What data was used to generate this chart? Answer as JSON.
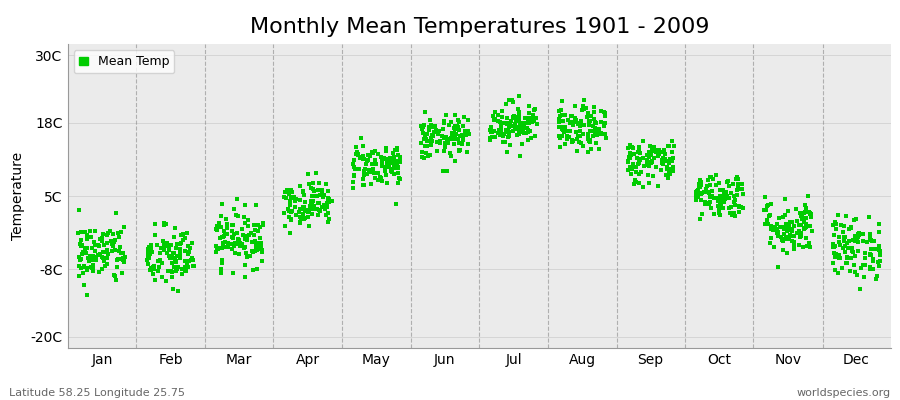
{
  "title": "Monthly Mean Temperatures 1901 - 2009",
  "ylabel": "Temperature",
  "yticks": [
    -20,
    -8,
    5,
    18,
    30
  ],
  "ytick_labels": [
    "-20C",
    "-8C",
    "5C",
    "18C",
    "30C"
  ],
  "ylim": [
    -22,
    32
  ],
  "xlim": [
    0.0,
    1.0
  ],
  "months": [
    "Jan",
    "Feb",
    "Mar",
    "Apr",
    "May",
    "Jun",
    "Jul",
    "Aug",
    "Sep",
    "Oct",
    "Nov",
    "Dec"
  ],
  "xtick_positions": [
    0.042,
    0.125,
    0.208,
    0.292,
    0.375,
    0.458,
    0.542,
    0.625,
    0.708,
    0.792,
    0.875,
    0.958
  ],
  "vline_positions": [
    0.083,
    0.167,
    0.25,
    0.333,
    0.417,
    0.5,
    0.583,
    0.667,
    0.75,
    0.833,
    0.917
  ],
  "monthly_means": [
    -5.2,
    -6.0,
    -2.5,
    3.8,
    10.5,
    15.2,
    17.8,
    16.8,
    11.2,
    5.2,
    -0.5,
    -4.2
  ],
  "monthly_stds": [
    2.8,
    2.8,
    2.5,
    2.0,
    2.0,
    2.0,
    2.0,
    2.0,
    2.0,
    2.0,
    2.5,
    2.8
  ],
  "n_years": 109,
  "marker_color": "#00cc00",
  "marker_size": 2.5,
  "background_color": "#ebebeb",
  "outer_background": "#ffffff",
  "grid_color": "#888888",
  "title_fontsize": 16,
  "label_fontsize": 10,
  "tick_fontsize": 10,
  "footer_left": "Latitude 58.25 Longitude 25.75",
  "footer_right": "worldspecies.org",
  "legend_label": "Mean Temp",
  "seed": 42
}
